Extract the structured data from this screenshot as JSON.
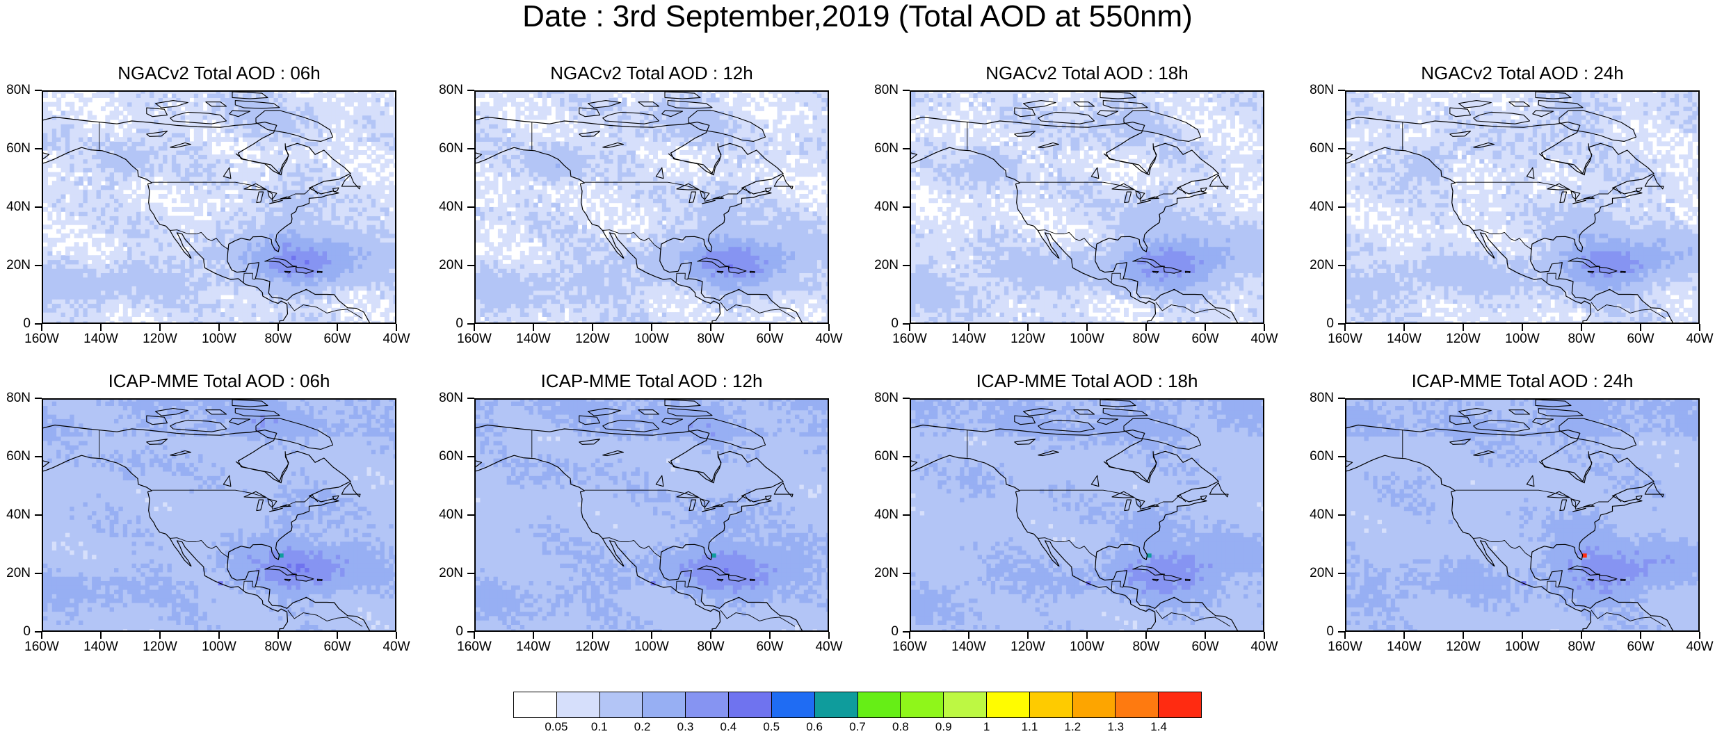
{
  "title": "Date : 3rd September,2019 (Total AOD at 550nm)",
  "panels": [
    {
      "title": "NGACv2 Total AOD : 06h",
      "model": "ngac",
      "lead": 0
    },
    {
      "title": "NGACv2 Total AOD : 12h",
      "model": "ngac",
      "lead": 1
    },
    {
      "title": "NGACv2 Total AOD : 18h",
      "model": "ngac",
      "lead": 2
    },
    {
      "title": "NGACv2 Total AOD : 24h",
      "model": "ngac",
      "lead": 3
    },
    {
      "title": "ICAP-MME Total AOD : 06h",
      "model": "icap",
      "lead": 0
    },
    {
      "title": "ICAP-MME Total AOD : 12h",
      "model": "icap",
      "lead": 1
    },
    {
      "title": "ICAP-MME Total AOD : 18h",
      "model": "icap",
      "lead": 2
    },
    {
      "title": "ICAP-MME Total AOD : 24h",
      "model": "icap",
      "lead": 3
    }
  ],
  "axes": {
    "lat_labels": [
      "80N",
      "60N",
      "40N",
      "20N",
      "0"
    ],
    "lon_labels": [
      "160W",
      "140W",
      "120W",
      "100W",
      "80W",
      "60W",
      "40W"
    ],
    "lat_range": [
      0,
      80
    ],
    "lon_range": [
      -160,
      -40
    ]
  },
  "colorbar": {
    "colors": [
      "#ffffff",
      "#d6dffb",
      "#b3c5f6",
      "#97aff3",
      "#8694f2",
      "#6f73ef",
      "#1f6cf3",
      "#0f9c9c",
      "#66ee16",
      "#8ff61a",
      "#bdf843",
      "#fffc00",
      "#fecb00",
      "#fda500",
      "#fe7a10",
      "#ff2b11"
    ],
    "labels": [
      "0.05",
      "0.1",
      "0.2",
      "0.3",
      "0.4",
      "0.5",
      "0.6",
      "0.7",
      "0.8",
      "0.9",
      "1",
      "1.1",
      "1.2",
      "1.3",
      "1.4"
    ]
  }
}
